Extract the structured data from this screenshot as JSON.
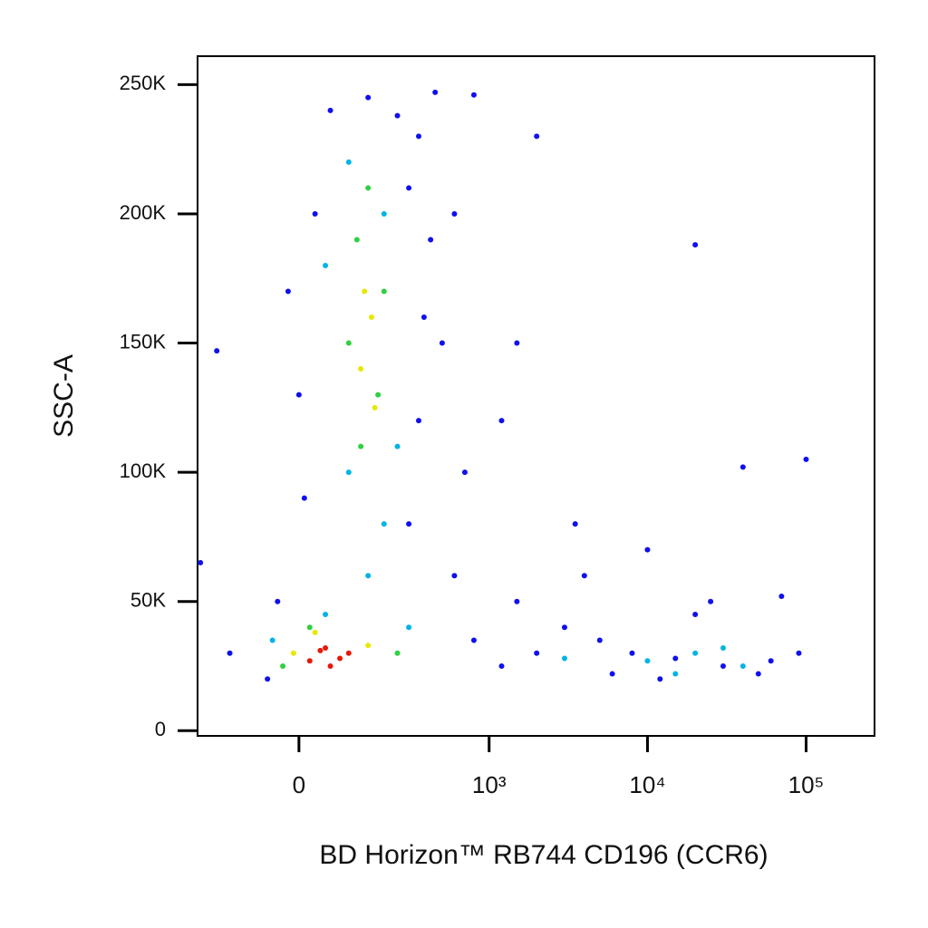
{
  "chart_data": {
    "type": "scatter",
    "x_label": "BD Horizon™ RB744 CD196 (CCR6)",
    "y_label": "SSC-A",
    "xscale": "biexponential",
    "xlim": [
      -262,
      270000
    ],
    "ylim": [
      -2000,
      261000
    ],
    "xticks": [
      0,
      {
        "value": 1000,
        "label": "10³"
      },
      {
        "value": 10000,
        "label": "10⁴"
      },
      {
        "value": 100000,
        "label": "10⁵"
      }
    ],
    "yticks": [
      0,
      {
        "value": 50000,
        "label": "50K"
      },
      {
        "value": 100000,
        "label": "100K"
      },
      {
        "value": 150000,
        "label": "150K"
      },
      {
        "value": 200000,
        "label": "200K"
      },
      {
        "value": 250000,
        "label": "250K"
      }
    ],
    "series": [
      {
        "color": "#1010ee",
        "x": [
          60,
          150,
          250,
          350,
          30,
          300,
          420,
          -20,
          380,
          500,
          0,
          350,
          700,
          10,
          300,
          600,
          -40,
          1500,
          3000,
          5000,
          8000,
          15000,
          30000,
          60000,
          90000,
          2000,
          1200,
          800,
          -150,
          -60,
          4000,
          20000,
          100000,
          40000,
          20000,
          2000,
          1500,
          600,
          3500,
          10000,
          -250,
          -190,
          450,
          800,
          1200,
          25000,
          70000,
          6000,
          12000,
          50000
        ],
        "values": [
          240000,
          245000,
          238000,
          230000,
          200000,
          210000,
          190000,
          170000,
          160000,
          150000,
          130000,
          120000,
          100000,
          90000,
          80000,
          60000,
          50000,
          50000,
          40000,
          35000,
          30000,
          28000,
          25000,
          27000,
          30000,
          30000,
          25000,
          35000,
          30000,
          20000,
          60000,
          45000,
          105000,
          102000,
          188000,
          230000,
          150000,
          200000,
          80000,
          70000,
          65000,
          147000,
          247000,
          246000,
          120000,
          50000,
          52000,
          22000,
          20000,
          22000
        ]
      },
      {
        "color": "#00b4e6",
        "x": [
          100,
          200,
          50,
          250,
          100,
          200,
          150,
          50,
          300,
          -50,
          20000,
          40000,
          10000,
          15000,
          30000,
          3000
        ],
        "values": [
          220000,
          200000,
          180000,
          110000,
          100000,
          80000,
          60000,
          45000,
          40000,
          35000,
          30000,
          25000,
          27000,
          22000,
          32000,
          28000
        ]
      },
      {
        "color": "#30d040",
        "x": [
          150,
          120,
          200,
          100,
          180,
          130,
          20,
          250,
          -30
        ],
        "values": [
          210000,
          190000,
          170000,
          150000,
          130000,
          110000,
          40000,
          30000,
          25000
        ]
      },
      {
        "color": "#e8e800",
        "x": [
          140,
          160,
          130,
          170,
          30,
          150,
          -10
        ],
        "values": [
          170000,
          160000,
          140000,
          125000,
          38000,
          33000,
          30000
        ]
      },
      {
        "color": "#e81808",
        "x": [
          50,
          80,
          20,
          100,
          60,
          40
        ],
        "values": [
          32000,
          28000,
          27000,
          30000,
          25000,
          31000
        ]
      }
    ]
  }
}
